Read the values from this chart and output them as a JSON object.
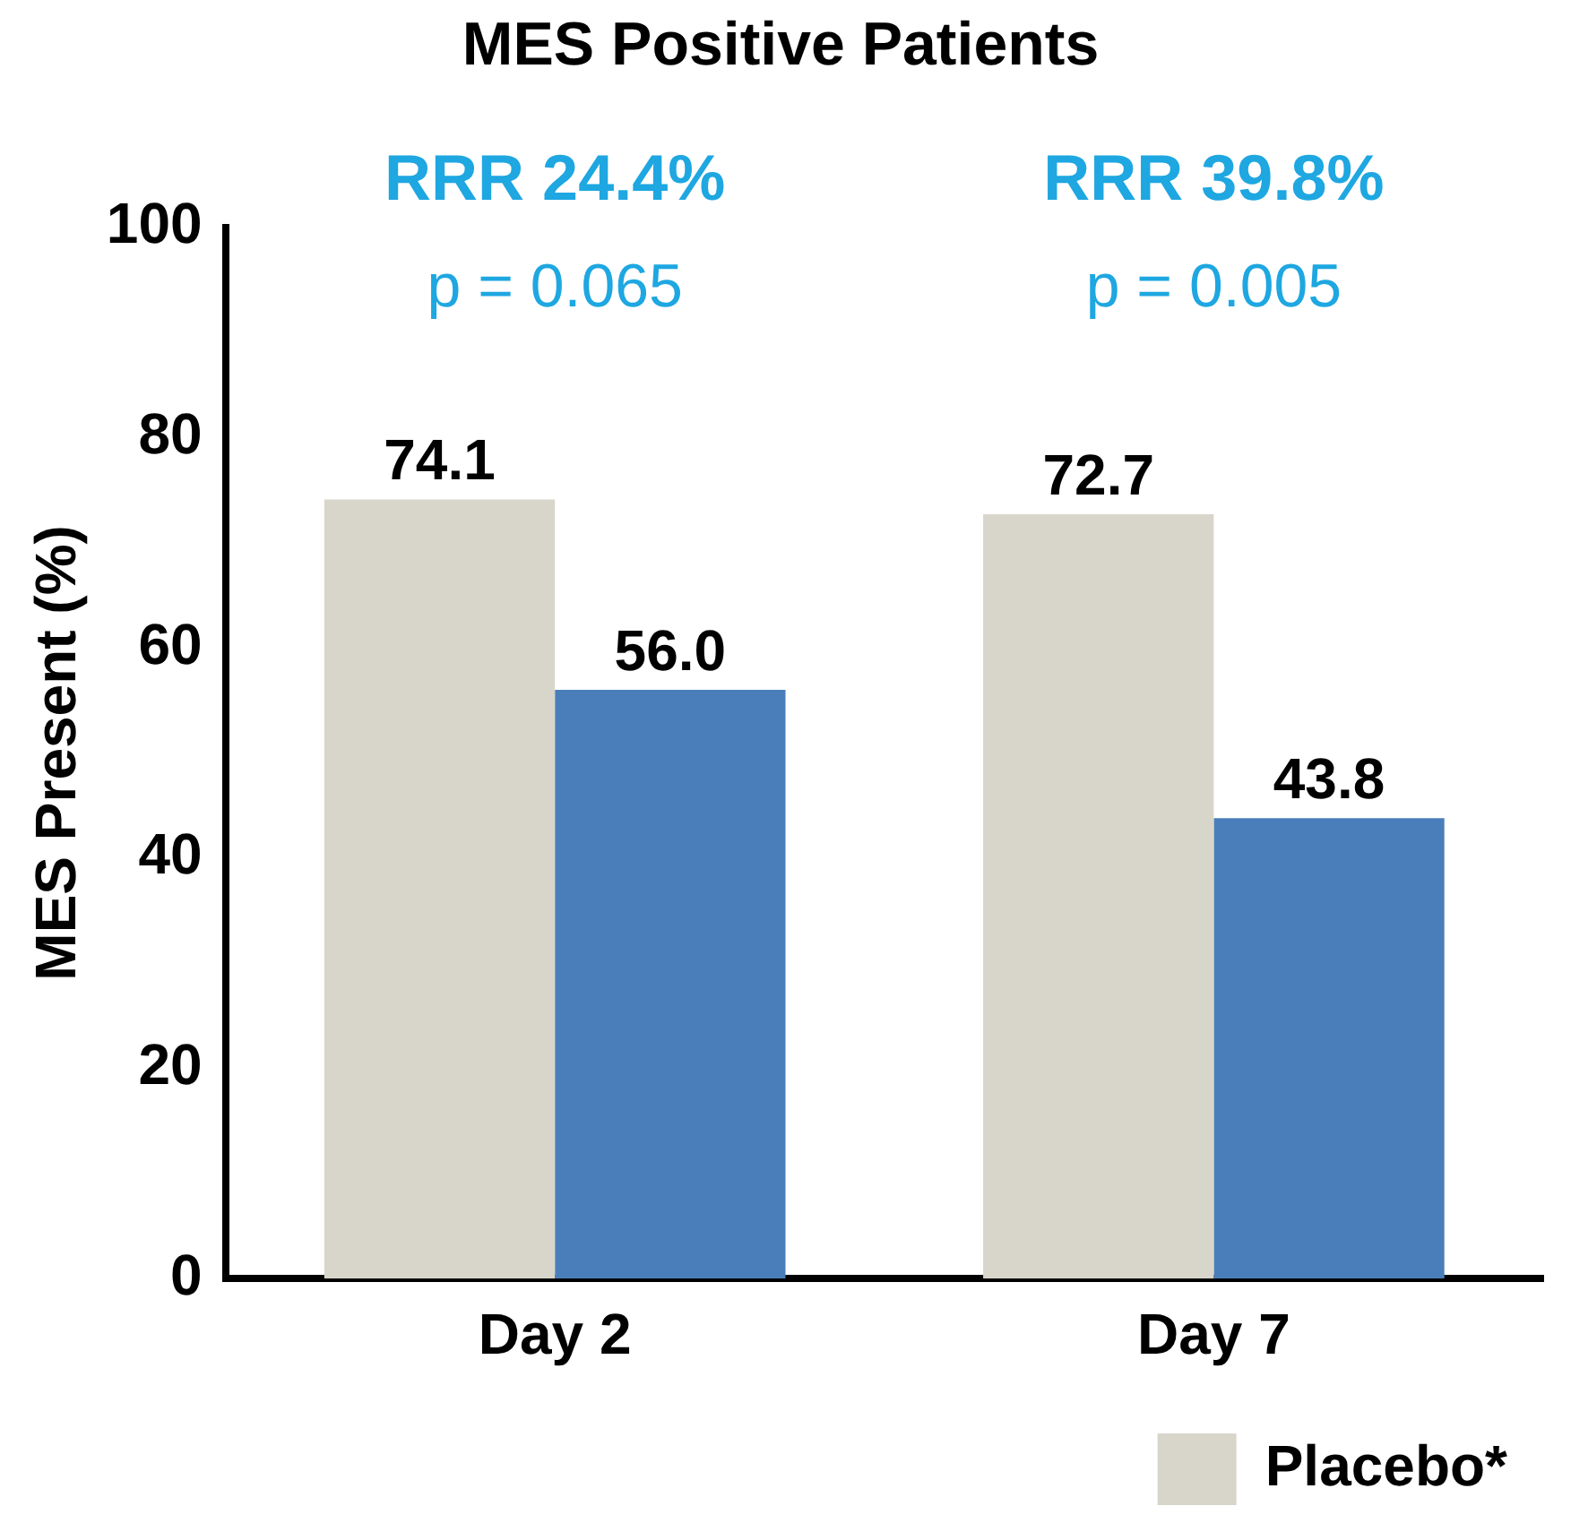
{
  "chart_data": {
    "type": "bar",
    "title": "MES Positive Patients",
    "ylabel": "MES Present (%)",
    "categories": [
      "Day 2",
      "Day 7"
    ],
    "series": [
      {
        "name": "Placebo*",
        "color": "#d8d6cb",
        "values": [
          74.1,
          72.7
        ]
      },
      {
        "color": "#4a7ebb",
        "values": [
          56.0,
          43.8
        ],
        "value_labels": [
          "56.0",
          "43.8"
        ]
      }
    ],
    "ylim": [
      0,
      100
    ],
    "yticks": [
      0,
      20,
      40,
      60,
      80,
      100
    ],
    "grid": false,
    "legend": "bottom right",
    "data_labels": true,
    "annotations": [
      "RRR 24.4%",
      "p = 0.065",
      "RRR 39.8%",
      "p = 0.005"
    ]
  }
}
